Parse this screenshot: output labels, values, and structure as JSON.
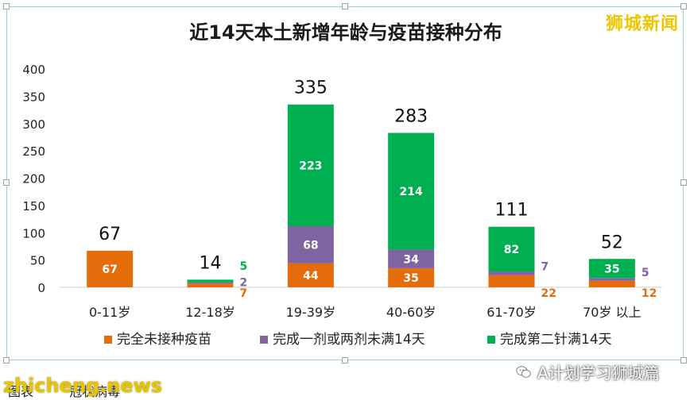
{
  "chart_data": {
    "type": "bar",
    "stacked": true,
    "title": "近14天本土新增年龄与疫苗接种分布",
    "categories": [
      "0-11岁",
      "12-18岁",
      "19-39岁",
      "40-60岁",
      "61-70岁",
      "70岁 以上"
    ],
    "series": [
      {
        "name": "完全未接种疫苗",
        "color": "#e46c0a",
        "values": [
          67,
          7,
          44,
          35,
          22,
          12
        ]
      },
      {
        "name": "完成一剂或两剂未满14天",
        "color": "#8064a2",
        "values": [
          0,
          2,
          68,
          34,
          7,
          5
        ]
      },
      {
        "name": "完成第二针满14天",
        "color": "#00b050",
        "values": [
          0,
          5,
          223,
          214,
          82,
          35
        ]
      }
    ],
    "totals": [
      67,
      14,
      335,
      283,
      111,
      52
    ],
    "ylim": [
      0,
      400
    ],
    "yticks": [
      0,
      50,
      100,
      150,
      200,
      250,
      300,
      350,
      400
    ],
    "xlabel": "",
    "ylabel": "",
    "grid": false,
    "legend": "bottom"
  },
  "watermark": {
    "brand": "狮城新闻",
    "site": "zhicheng.news",
    "account": "A计划学习狮城篇"
  },
  "caption": [
    "图表",
    "冠状病毒"
  ],
  "colors": {
    "border": "#9fd3cf",
    "brand": "#f0c400"
  }
}
